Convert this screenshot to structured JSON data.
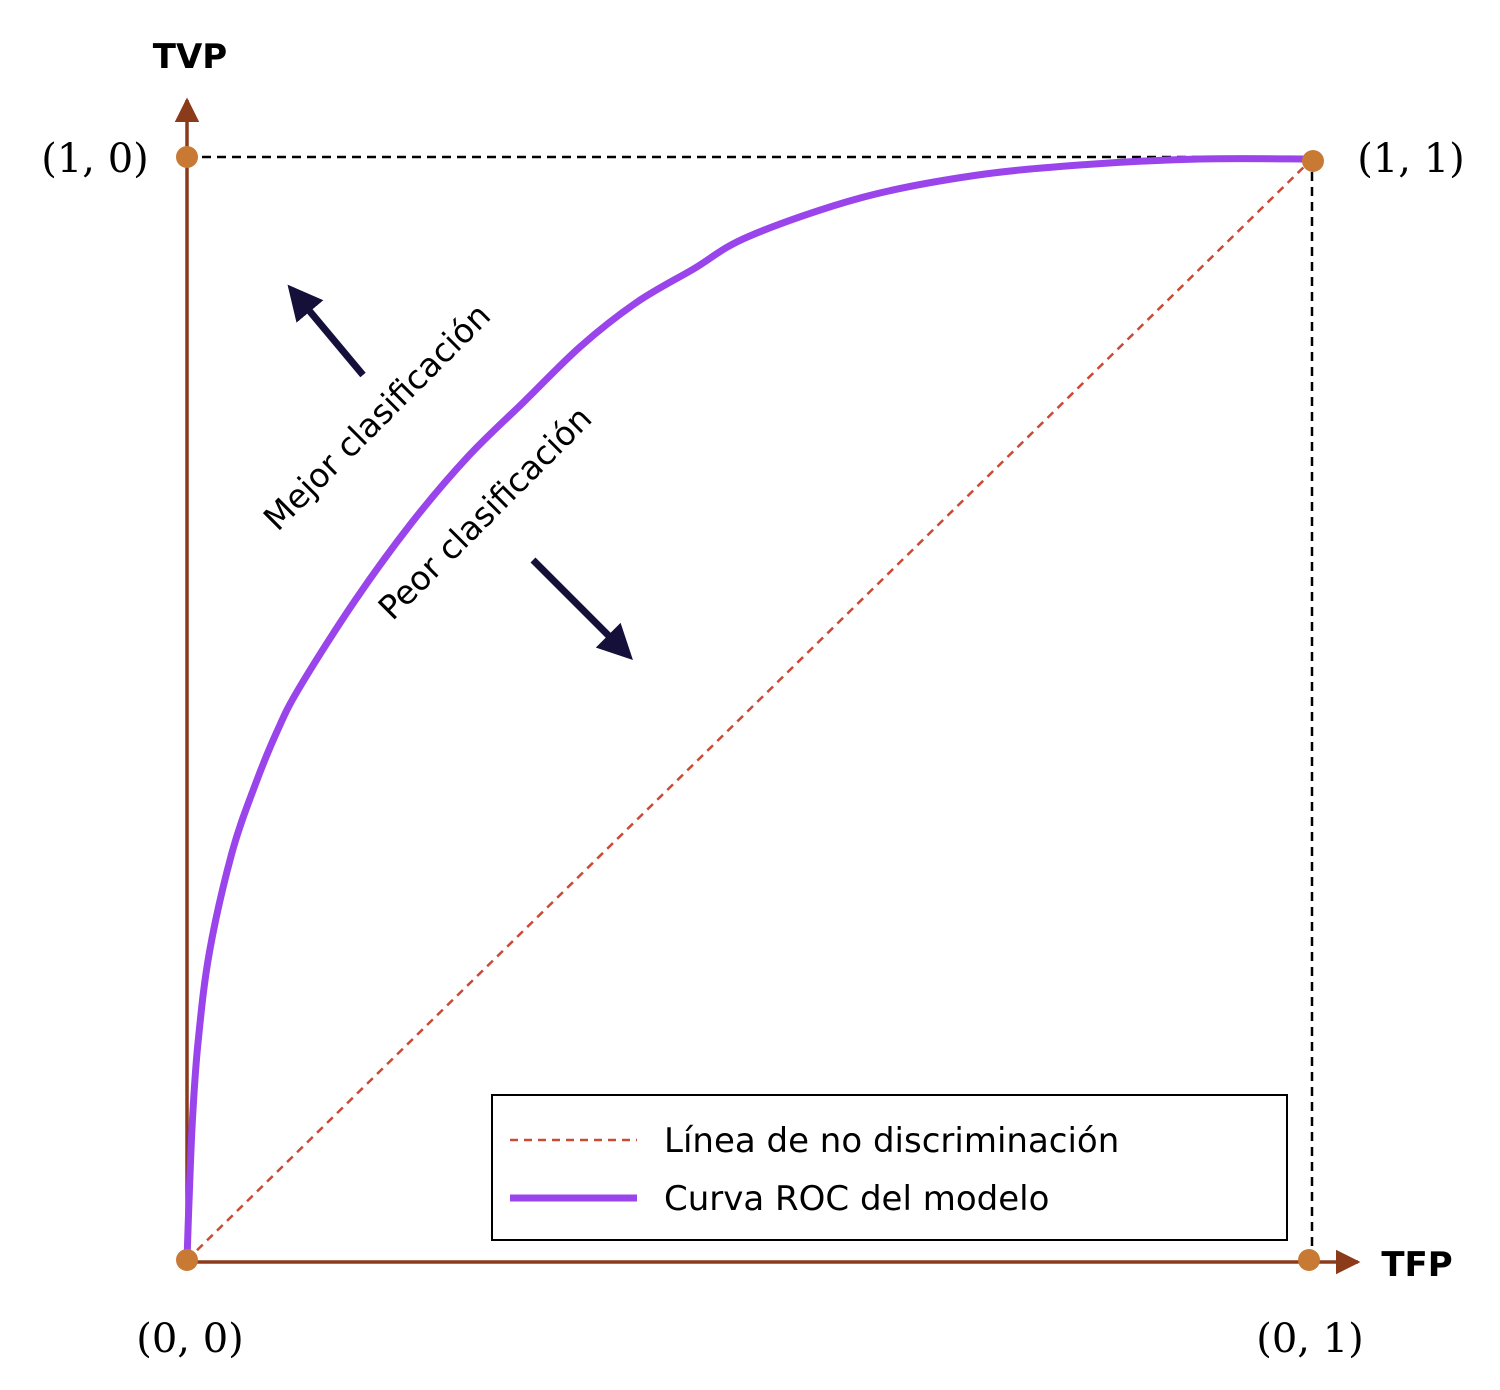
{
  "chart_data": {
    "type": "line",
    "xlabel": "TFP",
    "ylabel": "TVP",
    "xlim": [
      0,
      1
    ],
    "ylim": [
      0,
      1
    ],
    "grid": false,
    "legend_position": "bottom-right",
    "colors": {
      "axis": "#8b3a1a",
      "corner_point": "#c87a35",
      "roc_curve": "#9a45ec",
      "diagonal": "#c94a35",
      "arrow": "#14103a",
      "frame_dash": "#000000"
    },
    "corner_labels": {
      "origin": "(0, 0)",
      "top_left": "(1, 0)",
      "top_right": "(1, 1)",
      "bottom_right": "(0, 1)"
    },
    "annotations": {
      "better": "Mejor clasificación",
      "worse": "Peor clasificación"
    },
    "series": [
      {
        "name": "Línea de no discriminación",
        "style": "dashed",
        "x": [
          0,
          1
        ],
        "y": [
          0,
          1
        ]
      },
      {
        "name": "Curva ROC del modelo",
        "style": "solid",
        "x": [
          0,
          0.002,
          0.005,
          0.01,
          0.02,
          0.04,
          0.06,
          0.08,
          0.1,
          0.15,
          0.2,
          0.25,
          0.3,
          0.35,
          0.4,
          0.45,
          0.5,
          0.6,
          0.7,
          0.8,
          0.9,
          1.0
        ],
        "y": [
          0,
          0.06,
          0.13,
          0.2,
          0.28,
          0.37,
          0.43,
          0.48,
          0.52,
          0.6,
          0.67,
          0.73,
          0.78,
          0.83,
          0.87,
          0.9,
          0.93,
          0.965,
          0.985,
          0.995,
          1.0,
          1.0
        ]
      }
    ]
  }
}
